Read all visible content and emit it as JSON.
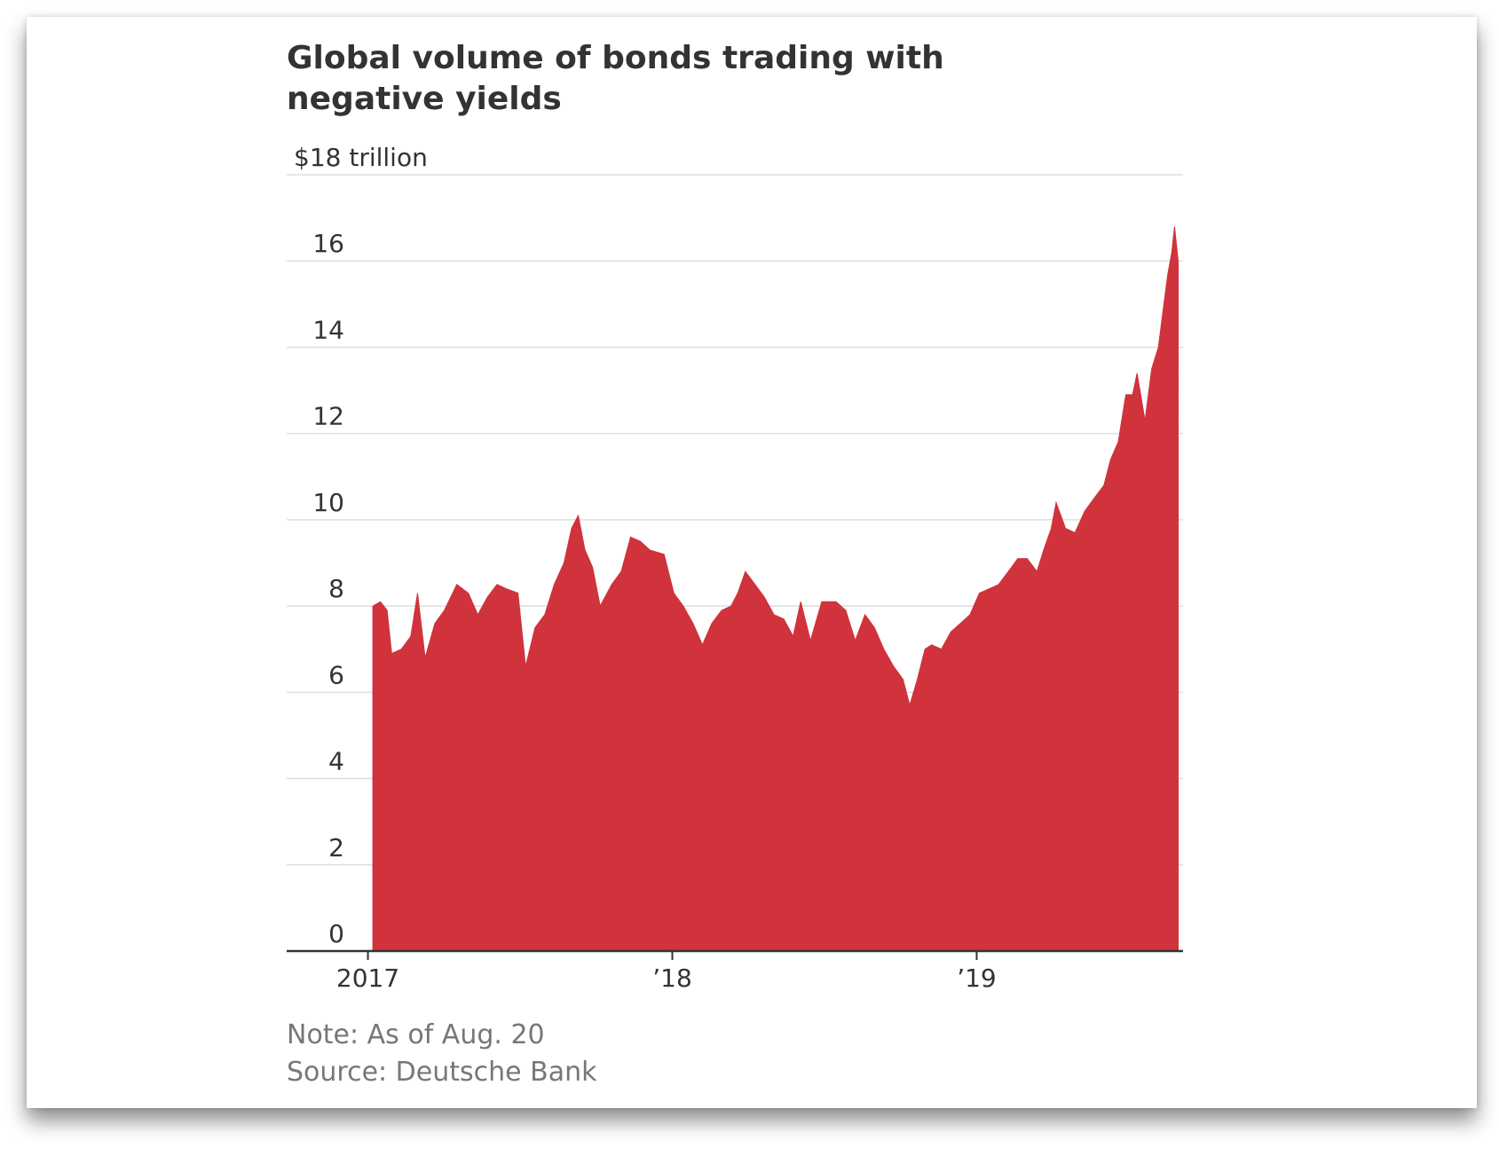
{
  "chart_data": {
    "type": "area",
    "title": [
      "Global volume of bonds trading with",
      "negative yields"
    ],
    "note": "Note: As of Aug. 20",
    "source": "Source: Deutsche Bank",
    "color": "#d0333b",
    "grid": true,
    "xlim": [
      2016.733,
      2019.678
    ],
    "xticks": [
      {
        "value": 2017,
        "label": "2017"
      },
      {
        "value": 2018,
        "label": "’18"
      },
      {
        "value": 2019,
        "label": "’19"
      }
    ],
    "ylim": [
      0,
      18
    ],
    "yticks": [
      0,
      2,
      4,
      6,
      8,
      10,
      12,
      14,
      16,
      {
        "value": 18,
        "label": "$18 trillion"
      }
    ],
    "x": [
      2017.016,
      2017.041,
      2017.063,
      2017.078,
      2017.11,
      2017.141,
      2017.163,
      2017.188,
      2017.22,
      2017.251,
      2017.292,
      2017.33,
      2017.361,
      2017.392,
      2017.424,
      2017.455,
      2017.493,
      2017.518,
      2017.549,
      2017.581,
      2017.612,
      2017.644,
      2017.669,
      2017.691,
      2017.713,
      2017.738,
      2017.763,
      2017.801,
      2017.832,
      2017.863,
      2017.895,
      2017.926,
      2017.973,
      2018.005,
      2018.036,
      2018.068,
      2018.099,
      2018.13,
      2018.162,
      2018.193,
      2018.215,
      2018.24,
      2018.272,
      2018.303,
      2018.334,
      2018.366,
      2018.397,
      2018.422,
      2018.454,
      2018.491,
      2018.538,
      2018.57,
      2018.601,
      2018.633,
      2018.664,
      2018.695,
      2018.727,
      2018.758,
      2018.78,
      2018.805,
      2018.83,
      2018.852,
      2018.884,
      2018.915,
      2018.947,
      2018.978,
      2019.009,
      2019.041,
      2019.072,
      2019.104,
      2019.135,
      2019.166,
      2019.198,
      2019.22,
      2019.245,
      2019.261,
      2019.292,
      2019.323,
      2019.355,
      2019.386,
      2019.418,
      2019.44,
      2019.465,
      2019.49,
      2019.512,
      2019.527,
      2019.553,
      2019.575,
      2019.597,
      2019.615,
      2019.628,
      2019.641,
      2019.65,
      2019.662
    ],
    "values": [
      8.0,
      8.1,
      7.9,
      6.9,
      7.0,
      7.3,
      8.3,
      6.8,
      7.6,
      7.9,
      8.5,
      8.3,
      7.8,
      8.2,
      8.5,
      8.4,
      8.3,
      6.6,
      7.5,
      7.8,
      8.5,
      9.0,
      9.8,
      10.1,
      9.3,
      8.9,
      8.0,
      8.5,
      8.8,
      9.6,
      9.5,
      9.3,
      9.2,
      8.3,
      8.0,
      7.6,
      7.1,
      7.6,
      7.9,
      8.0,
      8.3,
      8.8,
      8.5,
      8.2,
      7.8,
      7.7,
      7.3,
      8.1,
      7.2,
      8.1,
      8.1,
      7.9,
      7.2,
      7.8,
      7.5,
      7.0,
      6.6,
      6.3,
      5.7,
      6.3,
      7.0,
      7.1,
      7.0,
      7.4,
      7.6,
      7.8,
      8.3,
      8.4,
      8.5,
      8.8,
      9.1,
      9.1,
      8.8,
      9.3,
      9.8,
      10.4,
      9.8,
      9.7,
      10.2,
      10.5,
      10.8,
      11.4,
      11.8,
      12.9,
      12.9,
      13.4,
      12.3,
      13.5,
      14.0,
      15.0,
      15.7,
      16.2,
      16.8,
      16.0
    ]
  }
}
